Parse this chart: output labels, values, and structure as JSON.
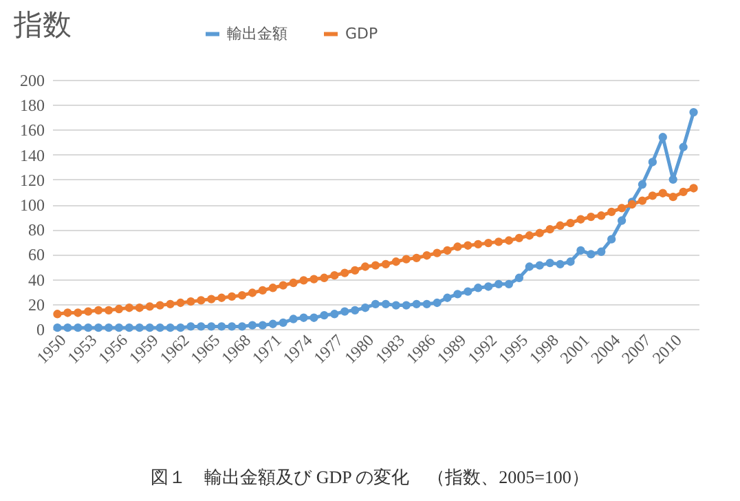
{
  "chart_data": {
    "type": "line",
    "title": "指数",
    "annotations": [
      "図１　輸出金額及び GDP の変化　（指数、2005=100）"
    ],
    "x": [
      1950,
      1951,
      1952,
      1953,
      1954,
      1955,
      1956,
      1957,
      1958,
      1959,
      1960,
      1961,
      1962,
      1963,
      1964,
      1965,
      1966,
      1967,
      1968,
      1969,
      1970,
      1971,
      1972,
      1973,
      1974,
      1975,
      1976,
      1977,
      1978,
      1979,
      1980,
      1981,
      1982,
      1983,
      1984,
      1985,
      1986,
      1987,
      1988,
      1989,
      1990,
      1991,
      1992,
      1993,
      1994,
      1995,
      1996,
      1997,
      1998,
      1999,
      2000,
      2001,
      2002,
      2003,
      2004,
      2005,
      2006,
      2007,
      2008,
      2009,
      2010,
      2011,
      2012
    ],
    "series": [
      {
        "name": "輸出金額",
        "color": "#5b9bd5",
        "values": [
          1,
          1,
          1,
          1,
          1,
          1,
          1,
          1,
          1,
          1,
          1,
          1,
          1,
          2,
          2,
          2,
          2,
          2,
          2,
          3,
          3,
          4,
          5,
          8,
          9,
          9,
          11,
          12,
          14,
          15,
          17,
          20,
          20,
          19,
          19,
          20,
          20,
          21,
          25,
          28,
          30,
          33,
          34,
          36,
          36,
          41,
          50,
          51,
          53,
          52,
          54,
          63,
          60,
          62,
          72,
          87,
          102,
          116,
          134,
          154,
          120,
          146,
          174
        ]
      },
      {
        "name": "GDP",
        "color": "#ed7d31",
        "values": [
          12,
          13,
          13,
          14,
          15,
          15,
          16,
          17,
          17,
          18,
          19,
          20,
          21,
          22,
          23,
          24,
          25,
          26,
          27,
          29,
          31,
          33,
          35,
          37,
          39,
          40,
          41,
          43,
          45,
          47,
          50,
          51,
          52,
          54,
          56,
          57,
          59,
          61,
          63,
          66,
          67,
          68,
          69,
          70,
          71,
          73,
          75,
          77,
          80,
          83,
          85,
          88,
          90,
          91,
          94,
          97,
          100,
          103,
          107,
          109,
          106,
          110,
          113
        ]
      }
    ],
    "xlim": [
      1949.5,
      2012.5
    ],
    "xticks": [
      1950,
      1953,
      1956,
      1959,
      1962,
      1965,
      1968,
      1971,
      1974,
      1977,
      1980,
      1983,
      1986,
      1989,
      1992,
      1995,
      1998,
      2001,
      2004,
      2007,
      2010
    ],
    "ylim": [
      0,
      200
    ],
    "yticks": [
      0,
      20,
      40,
      60,
      80,
      100,
      120,
      140,
      160,
      180,
      200
    ],
    "grid": "y",
    "legend": "top",
    "marker": "circle",
    "line_style": "solid"
  }
}
